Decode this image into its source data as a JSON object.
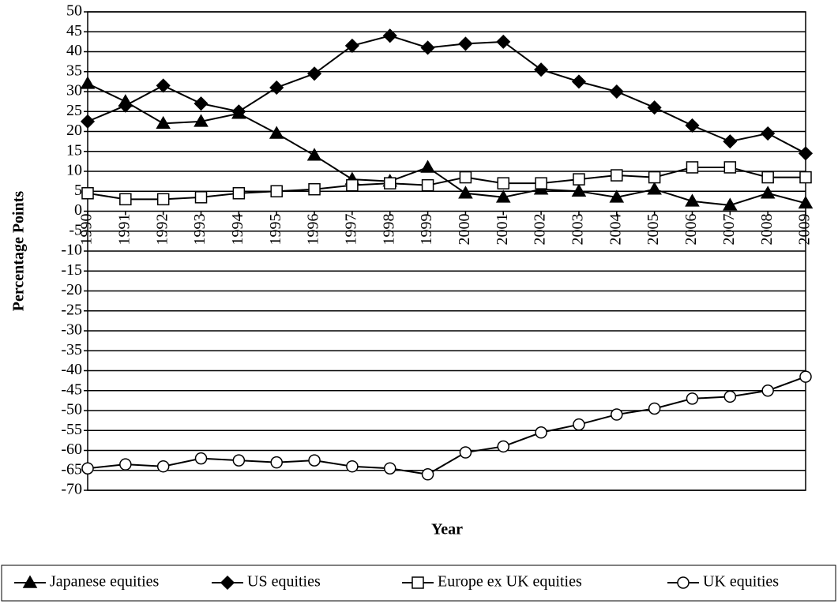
{
  "chart_data": {
    "type": "line",
    "x_label": "Year",
    "y_label": "Percentage Points",
    "categories": [
      "1990",
      "1991",
      "1992",
      "1993",
      "1994",
      "1995",
      "1996",
      "1997",
      "1998",
      "1999",
      "2000",
      "2001",
      "2002",
      "2003",
      "2004",
      "2005",
      "2006",
      "2007",
      "2008",
      "2009"
    ],
    "ylim": [
      -70,
      50
    ],
    "yticks": [
      -70,
      -65,
      -60,
      -55,
      -50,
      -45,
      -40,
      -35,
      -30,
      -25,
      -20,
      -15,
      -10,
      -5,
      0,
      5,
      10,
      15,
      20,
      25,
      30,
      35,
      40,
      45,
      50
    ],
    "grid": true,
    "legend": "bottom",
    "series": [
      {
        "name": "Japanese equities",
        "color": "#000000",
        "marker": "triangle",
        "marker_fill": "#000000",
        "values": [
          32,
          27.5,
          22,
          22.5,
          24.5,
          19.5,
          14,
          8,
          7.5,
          11,
          4.5,
          3.5,
          5.5,
          5,
          3.5,
          5.5,
          2.5,
          1.5,
          4.5,
          2
        ]
      },
      {
        "name": "US equities",
        "color": "#000000",
        "marker": "diamond",
        "marker_fill": "#000000",
        "values": [
          22.5,
          26.5,
          31.5,
          27,
          25,
          31,
          34.5,
          41.5,
          44,
          41,
          42,
          42.5,
          35.5,
          32.5,
          30,
          26,
          21.5,
          17.5,
          19.5,
          14.5
        ]
      },
      {
        "name": "Europe ex UK equities",
        "color": "#000000",
        "marker": "square",
        "marker_fill": "#ffffff",
        "values": [
          4.5,
          3,
          3,
          3.5,
          4.5,
          5,
          5.5,
          6.5,
          7,
          6.5,
          8.5,
          7,
          7,
          8,
          9,
          8.5,
          11,
          11,
          8.5,
          8.5
        ]
      },
      {
        "name": "UK equities",
        "color": "#000000",
        "marker": "circle",
        "marker_fill": "#ffffff",
        "values": [
          -64.5,
          -63.5,
          -64,
          -62,
          -62.5,
          -63,
          -62.5,
          -64,
          -64.5,
          -66,
          -60.5,
          -59,
          -55.5,
          -53.5,
          -51,
          -49.5,
          -47,
          -46.5,
          -45,
          -41.5
        ]
      }
    ]
  }
}
